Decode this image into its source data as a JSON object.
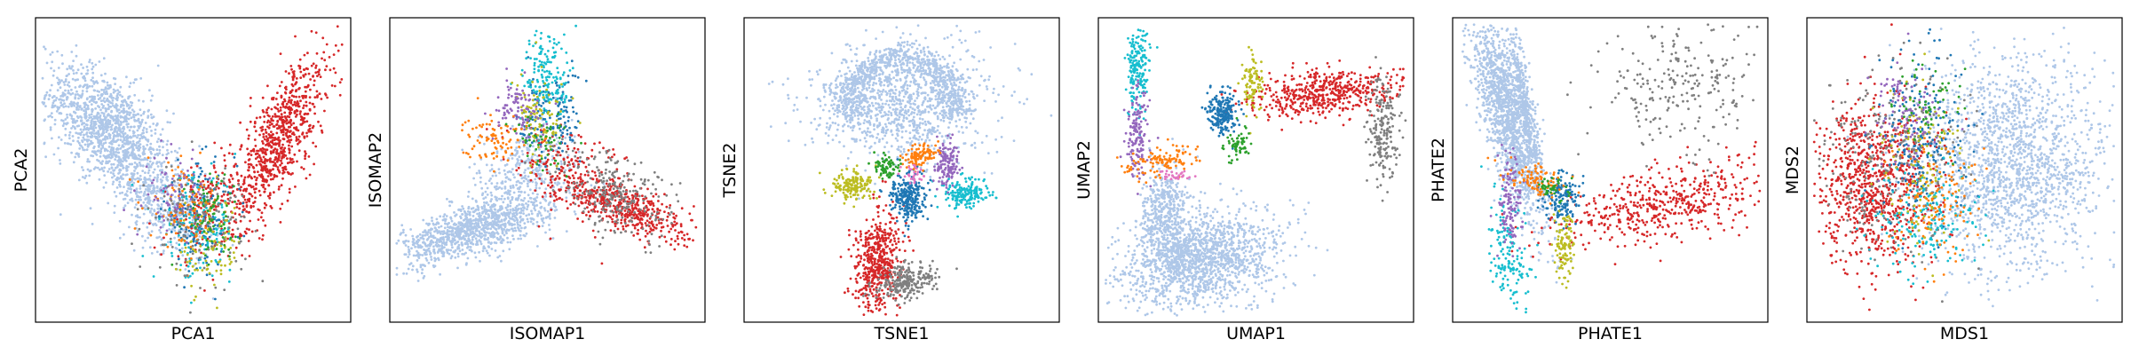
{
  "figure": {
    "background": "#ffffff",
    "axis_color": "#000000"
  },
  "palette": {
    "light_blue": "#aec7e8",
    "red": "#d62728",
    "gray": "#7f7f7f",
    "blue": "#1f77b4",
    "cyan": "#17becf",
    "olive": "#bcbd22",
    "orange": "#ff7f0e",
    "purple": "#9467bd",
    "green": "#2ca02c",
    "pink": "#e377c2",
    "brown": "#8c564b"
  },
  "chart_data": [
    {
      "type": "scatter",
      "title": "",
      "xlabel": "PCA1",
      "ylabel": "PCA2",
      "xlim": [
        0,
        100
      ],
      "ylim": [
        0,
        100
      ],
      "ticks": "none",
      "grid": false,
      "clusters": [
        {
          "color": "light_blue",
          "n": 1300,
          "cx": 22,
          "cy": 64,
          "sx": 10,
          "sy": 11,
          "rho": -0.55
        },
        {
          "color": "light_blue",
          "n": 420,
          "cx": 40,
          "cy": 38,
          "sx": 8,
          "sy": 9,
          "rho": -0.5
        },
        {
          "color": "red",
          "n": 800,
          "cx": 78,
          "cy": 60,
          "sx": 8,
          "sy": 15,
          "rho": 0.75
        },
        {
          "color": "red",
          "n": 160,
          "cx": 55,
          "cy": 38,
          "sx": 7,
          "sy": 9,
          "rho": 0.5
        },
        {
          "color": "blue",
          "n": 160,
          "cx": 52,
          "cy": 34,
          "sx": 6,
          "sy": 9,
          "rho": 0
        },
        {
          "color": "cyan",
          "n": 140,
          "cx": 51,
          "cy": 30,
          "sx": 7,
          "sy": 9,
          "rho": 0
        },
        {
          "color": "olive",
          "n": 100,
          "cx": 56,
          "cy": 24,
          "sx": 5,
          "sy": 8,
          "rho": 0
        },
        {
          "color": "orange",
          "n": 100,
          "cx": 47,
          "cy": 38,
          "sx": 6,
          "sy": 7,
          "rho": 0
        },
        {
          "color": "purple",
          "n": 80,
          "cx": 44,
          "cy": 42,
          "sx": 5,
          "sy": 6,
          "rho": 0
        },
        {
          "color": "gray",
          "n": 130,
          "cx": 52,
          "cy": 33,
          "sx": 8,
          "sy": 10,
          "rho": 0
        },
        {
          "color": "green",
          "n": 70,
          "cx": 55,
          "cy": 35,
          "sx": 5,
          "sy": 7,
          "rho": 0
        }
      ]
    },
    {
      "type": "scatter",
      "title": "",
      "xlabel": "ISOMAP1",
      "ylabel": "ISOMAP2",
      "xlim": [
        0,
        100
      ],
      "ylim": [
        0,
        100
      ],
      "ticks": "none",
      "grid": false,
      "clusters": [
        {
          "color": "light_blue",
          "n": 1100,
          "cx": 26,
          "cy": 30,
          "sx": 13,
          "sy": 6,
          "rho": 0.7
        },
        {
          "color": "light_blue",
          "n": 300,
          "cx": 42,
          "cy": 50,
          "sx": 8,
          "sy": 8,
          "rho": 0.4
        },
        {
          "color": "red",
          "n": 520,
          "cx": 74,
          "cy": 38,
          "sx": 12,
          "sy": 6,
          "rho": -0.75
        },
        {
          "color": "red",
          "n": 160,
          "cx": 58,
          "cy": 50,
          "sx": 10,
          "sy": 9,
          "rho": -0.4
        },
        {
          "color": "gray",
          "n": 260,
          "cx": 72,
          "cy": 42,
          "sx": 10,
          "sy": 8,
          "rho": -0.5
        },
        {
          "color": "blue",
          "n": 150,
          "cx": 51,
          "cy": 68,
          "sx": 5,
          "sy": 8,
          "rho": 0
        },
        {
          "color": "cyan",
          "n": 170,
          "cx": 50,
          "cy": 82,
          "sx": 4,
          "sy": 8,
          "rho": 0
        },
        {
          "color": "olive",
          "n": 90,
          "cx": 48,
          "cy": 67,
          "sx": 4,
          "sy": 7,
          "rho": 0
        },
        {
          "color": "purple",
          "n": 100,
          "cx": 40,
          "cy": 70,
          "sx": 4,
          "sy": 5,
          "rho": 0
        },
        {
          "color": "orange",
          "n": 90,
          "cx": 33,
          "cy": 61,
          "sx": 5,
          "sy": 4,
          "rho": 0
        },
        {
          "color": "green",
          "n": 50,
          "cx": 48,
          "cy": 60,
          "sx": 5,
          "sy": 5,
          "rho": 0
        }
      ]
    },
    {
      "type": "scatter",
      "title": "",
      "xlabel": "TSNE1",
      "ylabel": "TSNE2",
      "xlim": [
        0,
        100
      ],
      "ylim": [
        0,
        100
      ],
      "ticks": "none",
      "grid": false,
      "clusters": [
        {
          "color": "light_blue",
          "n": 1800,
          "cx": 50,
          "cy": 73,
          "sx": 15,
          "sy": 10,
          "rho": 0,
          "ring": {
            "r": 17,
            "ry": 15,
            "open_start": 200,
            "open_end": 340,
            "w": 6
          }
        },
        {
          "color": "red",
          "n": 500,
          "cx": 42,
          "cy": 18,
          "sx": 4,
          "sy": 9,
          "rho": 0.1
        },
        {
          "color": "gray",
          "n": 240,
          "cx": 51,
          "cy": 12,
          "sx": 5,
          "sy": 3,
          "rho": 0.3
        },
        {
          "color": "blue",
          "n": 260,
          "cx": 52,
          "cy": 41,
          "sx": 3,
          "sy": 4,
          "rho": 0
        },
        {
          "color": "cyan",
          "n": 180,
          "cx": 71,
          "cy": 42,
          "sx": 4,
          "sy": 2.5,
          "rho": 0
        },
        {
          "color": "olive",
          "n": 160,
          "cx": 34,
          "cy": 45,
          "sx": 3.5,
          "sy": 2.5,
          "rho": 0
        },
        {
          "color": "purple",
          "n": 130,
          "cx": 65,
          "cy": 53,
          "sx": 2,
          "sy": 4,
          "rho": 0
        },
        {
          "color": "orange",
          "n": 110,
          "cx": 56,
          "cy": 55,
          "sx": 3,
          "sy": 2,
          "rho": 0.4
        },
        {
          "color": "green",
          "n": 70,
          "cx": 45,
          "cy": 51,
          "sx": 2,
          "sy": 2,
          "rho": 0
        },
        {
          "color": "pink",
          "n": 30,
          "cx": 54,
          "cy": 48,
          "sx": 2,
          "sy": 2,
          "rho": 0
        }
      ]
    },
    {
      "type": "scatter",
      "title": "",
      "xlabel": "UMAP1",
      "ylabel": "UMAP2",
      "xlim": [
        0,
        100
      ],
      "ylim": [
        0,
        100
      ],
      "ticks": "none",
      "grid": false,
      "clusters": [
        {
          "color": "light_blue",
          "n": 1500,
          "cx": 32,
          "cy": 20,
          "sx": 13,
          "sy": 8,
          "rho": 0.2
        },
        {
          "color": "light_blue",
          "n": 450,
          "cx": 20,
          "cy": 35,
          "sx": 4,
          "sy": 8,
          "rho": 0
        },
        {
          "color": "red",
          "n": 520,
          "cx": 72,
          "cy": 76,
          "sx": 13,
          "sy": 4,
          "rho": 0.35
        },
        {
          "color": "gray",
          "n": 200,
          "cx": 92,
          "cy": 63,
          "sx": 2.5,
          "sy": 9,
          "rho": 0
        },
        {
          "color": "blue",
          "n": 220,
          "cx": 39,
          "cy": 69,
          "sx": 2.5,
          "sy": 4,
          "rho": 0
        },
        {
          "color": "cyan",
          "n": 200,
          "cx": 11,
          "cy": 85,
          "sx": 1.8,
          "sy": 8,
          "rho": 0
        },
        {
          "color": "purple",
          "n": 150,
          "cx": 11,
          "cy": 62,
          "sx": 1.8,
          "sy": 8,
          "rho": 0
        },
        {
          "color": "orange",
          "n": 110,
          "cx": 20,
          "cy": 53,
          "sx": 6,
          "sy": 2.5,
          "rho": 0.5
        },
        {
          "color": "olive",
          "n": 90,
          "cx": 49,
          "cy": 79,
          "sx": 1.8,
          "sy": 5,
          "rho": 0
        },
        {
          "color": "green",
          "n": 60,
          "cx": 44,
          "cy": 59,
          "sx": 2,
          "sy": 3,
          "rho": 0
        },
        {
          "color": "pink",
          "n": 30,
          "cx": 23,
          "cy": 48,
          "sx": 3,
          "sy": 1,
          "rho": 0
        }
      ]
    },
    {
      "type": "scatter",
      "title": "",
      "xlabel": "PHATE1",
      "ylabel": "PHATE2",
      "xlim": [
        0,
        100
      ],
      "ylim": [
        0,
        100
      ],
      "ticks": "none",
      "grid": false,
      "clusters": [
        {
          "color": "light_blue",
          "n": 1500,
          "cx": 16,
          "cy": 70,
          "sx": 6,
          "sy": 18,
          "rho": -0.75
        },
        {
          "color": "light_blue",
          "n": 400,
          "cx": 22,
          "cy": 72,
          "sx": 3,
          "sy": 16,
          "rho": -0.9
        },
        {
          "color": "red",
          "n": 520,
          "cx": 68,
          "cy": 38,
          "sx": 18,
          "sy": 7,
          "rho": 0.5
        },
        {
          "color": "gray",
          "n": 260,
          "cx": 75,
          "cy": 78,
          "sx": 15,
          "sy": 11,
          "rho": 0.1
        },
        {
          "color": "blue",
          "n": 150,
          "cx": 34,
          "cy": 40,
          "sx": 3,
          "sy": 4,
          "rho": 0
        },
        {
          "color": "cyan",
          "n": 160,
          "cx": 17,
          "cy": 20,
          "sx": 3.5,
          "sy": 10,
          "rho": -0.4
        },
        {
          "color": "purple",
          "n": 120,
          "cx": 17,
          "cy": 40,
          "sx": 2,
          "sy": 9,
          "rho": 0
        },
        {
          "color": "olive",
          "n": 110,
          "cx": 35,
          "cy": 24,
          "sx": 2,
          "sy": 6,
          "rho": 0
        },
        {
          "color": "orange",
          "n": 100,
          "cx": 26,
          "cy": 47,
          "sx": 5,
          "sy": 3,
          "rho": -0.4
        },
        {
          "color": "green",
          "n": 40,
          "cx": 31,
          "cy": 44,
          "sx": 2.5,
          "sy": 2,
          "rho": 0
        }
      ]
    },
    {
      "type": "scatter",
      "title": "",
      "xlabel": "MDS1",
      "ylabel": "MDS2",
      "xlim": [
        0,
        100
      ],
      "ylim": [
        0,
        100
      ],
      "ticks": "none",
      "grid": false,
      "clusters": [
        {
          "color": "light_blue",
          "n": 1700,
          "cx": 66,
          "cy": 52,
          "sx": 16,
          "sy": 18,
          "rho": 0
        },
        {
          "color": "red",
          "n": 850,
          "cx": 20,
          "cy": 45,
          "sx": 9,
          "sy": 14,
          "rho": 0
        },
        {
          "color": "gray",
          "n": 260,
          "cx": 25,
          "cy": 55,
          "sx": 12,
          "sy": 15,
          "rho": 0
        },
        {
          "color": "blue",
          "n": 220,
          "cx": 35,
          "cy": 62,
          "sx": 8,
          "sy": 14,
          "rho": 0
        },
        {
          "color": "cyan",
          "n": 180,
          "cx": 38,
          "cy": 33,
          "sx": 9,
          "sy": 8,
          "rho": 0
        },
        {
          "color": "olive",
          "n": 130,
          "cx": 36,
          "cy": 50,
          "sx": 7,
          "sy": 16,
          "rho": 0
        },
        {
          "color": "orange",
          "n": 120,
          "cx": 42,
          "cy": 40,
          "sx": 8,
          "sy": 10,
          "rho": 0
        },
        {
          "color": "purple",
          "n": 100,
          "cx": 30,
          "cy": 70,
          "sx": 6,
          "sy": 8,
          "rho": 0
        },
        {
          "color": "green",
          "n": 60,
          "cx": 38,
          "cy": 72,
          "sx": 6,
          "sy": 7,
          "rho": 0
        }
      ]
    }
  ]
}
